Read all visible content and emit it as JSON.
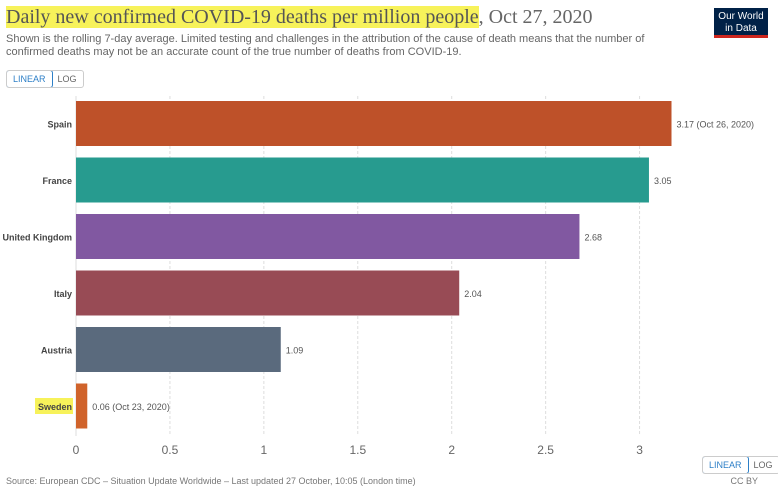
{
  "header": {
    "title": "Daily new confirmed COVID-19 deaths per million people",
    "date": ", Oct 27, 2020",
    "subtitle": "Shown is the rolling 7-day average. Limited testing and challenges in the attribution of the cause of death means that the number of confirmed deaths may not be an accurate count of the true number of deaths from COVID-19.",
    "logo_line1": "Our World",
    "logo_line2": "in Data"
  },
  "toggle": {
    "linear": "LINEAR",
    "log": "LOG",
    "active": "linear"
  },
  "chart_data": {
    "type": "bar",
    "orientation": "horizontal",
    "categories": [
      "Spain",
      "France",
      "United Kingdom",
      "Italy",
      "Austria",
      "Sweden"
    ],
    "values": [
      3.17,
      3.05,
      2.68,
      2.04,
      1.09,
      0.06
    ],
    "value_labels": [
      "3.17 (Oct 26, 2020)",
      "3.05",
      "2.68",
      "2.04",
      "1.09",
      "0.06 (Oct 23, 2020)"
    ],
    "colors": [
      "#be5129",
      "#279b8f",
      "#8158a1",
      "#984b55",
      "#5a6a7d",
      "#d0632b"
    ],
    "highlighted_category": "Sweden",
    "highlight_color": "#f7f25a",
    "xlim": [
      0,
      3.17
    ],
    "xticks": [
      0,
      0.5,
      1,
      1.5,
      2,
      2.5,
      3
    ],
    "xtick_labels": [
      "0",
      "0.5",
      "1",
      "1.5",
      "2",
      "2.5",
      "3"
    ],
    "grid": true
  },
  "footer": {
    "source": "Source: European CDC – Situation Update Worldwide – Last updated 27 October, 10:05 (London time)",
    "license": "CC BY"
  }
}
